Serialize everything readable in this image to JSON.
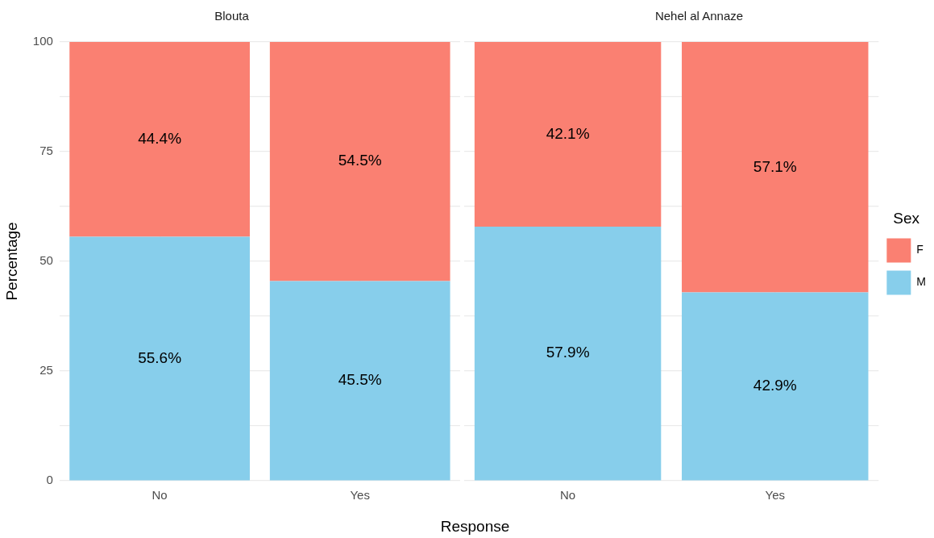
{
  "chart_data": [
    {
      "type": "bar",
      "title": "Blouta",
      "ylabel": "Percentage",
      "xlabel": "Response",
      "categories": [
        "No",
        "Yes"
      ],
      "stacked": true,
      "series": [
        {
          "color": "#87ceeb",
          "values": [
            55.6,
            45.5
          ],
          "value_labels": [
            "55.6%",
            "45.5%"
          ]
        },
        {
          "color": "#fa8072",
          "values": [
            44.4,
            54.5
          ],
          "value_labels": [
            "44.4%",
            "54.5%"
          ]
        }
      ],
      "ylim": [
        0,
        100
      ],
      "yticks": [
        0,
        {
          "value": 12.5,
          "label": null
        },
        25,
        {
          "value": 37.5,
          "label": null
        },
        50,
        {
          "value": 62.5,
          "label": null
        },
        75,
        {
          "value": 87.5,
          "label": null
        },
        100
      ],
      "grid": true,
      "legend": false
    },
    {
      "type": "bar",
      "title": "Nehel al Annaze",
      "categories": [
        "No",
        "Yes"
      ],
      "stacked": true,
      "legend_title": "Sex",
      "series": [
        {
          "name": "M",
          "color": "#87ceeb",
          "values": [
            57.9,
            42.9
          ],
          "value_labels": [
            "57.9%",
            "42.9%"
          ]
        },
        {
          "name": "F",
          "color": "#fa8072",
          "values": [
            42.1,
            57.1
          ],
          "value_labels": [
            "42.1%",
            "57.1%"
          ]
        }
      ],
      "ylim": [
        0,
        100
      ],
      "yticks": [
        0,
        {
          "value": 12.5,
          "label": null
        },
        25,
        {
          "value": 37.5,
          "label": null
        },
        50,
        {
          "value": 62.5,
          "label": null
        },
        75,
        {
          "value": 87.5,
          "label": null
        },
        100
      ],
      "grid": true,
      "legend": "right",
      "tick_labels": "x"
    }
  ]
}
